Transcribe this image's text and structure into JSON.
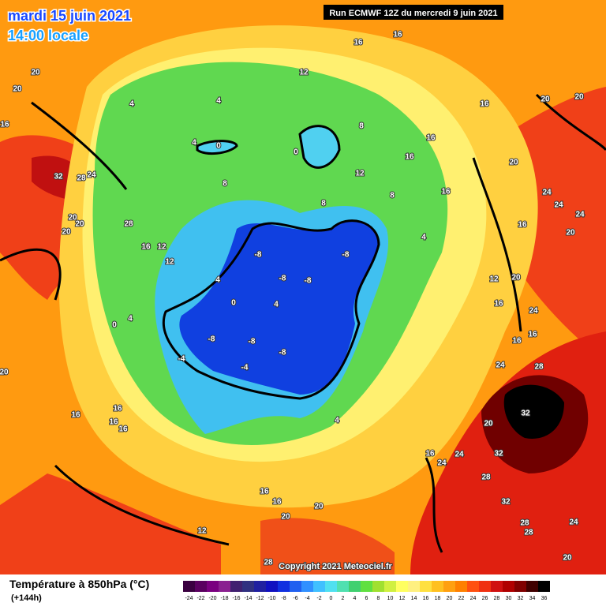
{
  "header": {
    "date": "mardi 15 juin 2021",
    "time": "14:00 locale",
    "run": "Run ECMWF 12Z du mercredi 9 juin 2021"
  },
  "map_labels": [
    20,
    20,
    16,
    32,
    28,
    24,
    20,
    20,
    28,
    20,
    16,
    12,
    12,
    4,
    4,
    4,
    0,
    0,
    8,
    12,
    16,
    16,
    16,
    20,
    20,
    16,
    16,
    12,
    8,
    8,
    8,
    16,
    20,
    24,
    24,
    24,
    20,
    16,
    4,
    -8,
    -8,
    -8,
    -8,
    4,
    0,
    4,
    12,
    20,
    16,
    24,
    16,
    16,
    24,
    28,
    -8,
    -8,
    -8,
    -4,
    -4,
    0,
    4,
    20,
    16,
    16,
    16,
    16,
    4,
    32,
    20,
    32,
    24,
    24,
    16,
    28,
    32,
    16,
    16,
    20,
    20,
    28,
    28,
    24,
    12,
    28,
    20
  ],
  "footer": {
    "title": "Température à 850hPa (°C)",
    "lead": "(+144h)",
    "copyright": "Copyright 2021 Meteociel.fr"
  },
  "legend": {
    "values": [
      -24,
      -22,
      -20,
      -18,
      -16,
      -14,
      -12,
      -10,
      -8,
      -6,
      -4,
      -2,
      0,
      2,
      4,
      6,
      8,
      10,
      12,
      14,
      16,
      18,
      20,
      22,
      24,
      26,
      28,
      30,
      32,
      34,
      36
    ],
    "colors": [
      "#3a0040",
      "#5a0060",
      "#7a0080",
      "#8a2090",
      "#402070",
      "#303080",
      "#2020a0",
      "#1010c0",
      "#1030e0",
      "#2060f0",
      "#3090ff",
      "#40c0ff",
      "#50e0f0",
      "#50e0b0",
      "#40d070",
      "#60e040",
      "#a0e030",
      "#d0f040",
      "#ffff60",
      "#fff080",
      "#ffe040",
      "#ffc020",
      "#ffa010",
      "#ff8000",
      "#ff5010",
      "#f03010",
      "#d01010",
      "#b00000",
      "#800000",
      "#400000",
      "#000000"
    ]
  }
}
